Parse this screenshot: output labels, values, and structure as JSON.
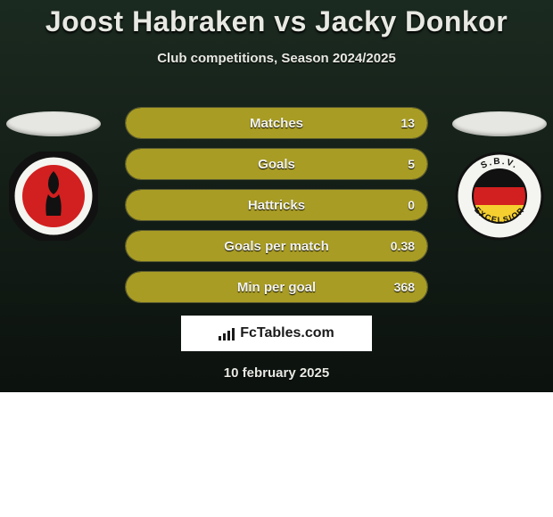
{
  "title": "Joost Habraken vs Jacky Donkor",
  "subtitle": "Club competitions, Season 2024/2025",
  "date": "10 february 2025",
  "watermark": "FcTables.com",
  "colors": {
    "bar_fill": "#a89c24",
    "bar_border": "#5a5a30",
    "bar_bg": "#1a1f18"
  },
  "stats": [
    {
      "label": "Matches",
      "value": "13",
      "fill_pct": 100
    },
    {
      "label": "Goals",
      "value": "5",
      "fill_pct": 100
    },
    {
      "label": "Hattricks",
      "value": "0",
      "fill_pct": 100
    },
    {
      "label": "Goals per match",
      "value": "0.38",
      "fill_pct": 100
    },
    {
      "label": "Min per goal",
      "value": "368",
      "fill_pct": 100
    }
  ],
  "badges": {
    "left": {
      "name": "Helmond Sport",
      "ring_color": "#111111",
      "inner_color": "#d21f1f",
      "silhouette_color": "#111111"
    },
    "right": {
      "name": "S.B.V. Excelsior",
      "text": "S.B.V. EXCELSIOR",
      "ring_color": "#111111",
      "top_color": "#111111",
      "mid_color": "#d21f1f",
      "bot_color": "#f5cf2f"
    }
  }
}
